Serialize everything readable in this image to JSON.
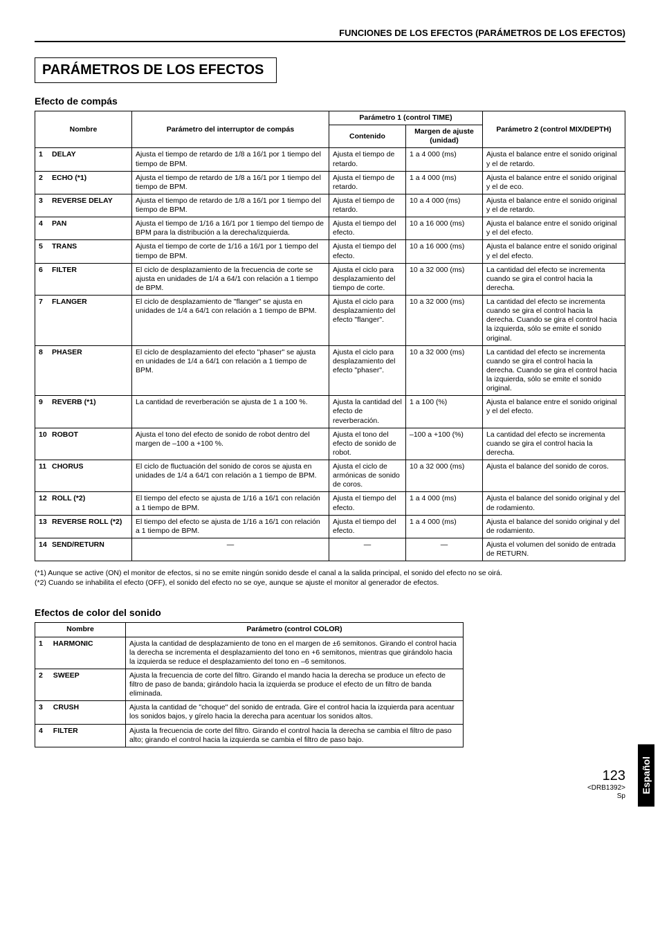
{
  "header": "FUNCIONES DE LOS EFECTOS (PARÁMETROS DE LOS EFECTOS)",
  "mainTitle": "PARÁMETROS DE LOS EFECTOS",
  "beat": {
    "title": "Efecto de compás",
    "columns": {
      "name": "Nombre",
      "switch": "Parámetro del interruptor de compás",
      "p1group": "Parámetro 1 (control TIME)",
      "content": "Contenido",
      "range": "Margen de ajuste (unidad)",
      "p2": "Parámetro 2 (control MIX/DEPTH)"
    },
    "rows": [
      {
        "n": "1",
        "name": "DELAY",
        "switch": "Ajusta el tiempo de retardo de 1/8 a 16/1 por 1 tiempo del tiempo de BPM.",
        "content": "Ajusta el tiempo de retardo.",
        "range": "1 a 4 000 (ms)",
        "p2": "Ajusta el balance entre el sonido original y el de retardo."
      },
      {
        "n": "2",
        "name": "ECHO (*1)",
        "switch": "Ajusta el tiempo de retardo de 1/8 a 16/1 por 1 tiempo del tiempo de BPM.",
        "content": "Ajusta el tiempo de retardo.",
        "range": "1 a 4 000 (ms)",
        "p2": "Ajusta el balance entre el sonido original y el de eco."
      },
      {
        "n": "3",
        "name": "REVERSE DELAY",
        "switch": "Ajusta el tiempo de retardo de 1/8 a 16/1 por 1 tiempo del tiempo de BPM.",
        "content": "Ajusta el tiempo de retardo.",
        "range": "10 a 4 000 (ms)",
        "p2": "Ajusta el balance entre el sonido original y el de retardo."
      },
      {
        "n": "4",
        "name": "PAN",
        "switch": "Ajusta el tiempo de 1/16 a 16/1 por 1 tiempo del tiempo de BPM para la distribución a la derecha/izquierda.",
        "content": "Ajusta el tiempo del efecto.",
        "range": "10 a 16 000 (ms)",
        "p2": "Ajusta el balance entre el sonido original y el del efecto."
      },
      {
        "n": "5",
        "name": "TRANS",
        "switch": "Ajusta el tiempo de corte de 1/16 a 16/1 por 1 tiempo del tiempo de BPM.",
        "content": "Ajusta el tiempo del efecto.",
        "range": "10 a 16 000 (ms)",
        "p2": "Ajusta el balance entre el sonido original y el del efecto."
      },
      {
        "n": "6",
        "name": "FILTER",
        "switch": "El ciclo de desplazamiento de la frecuencia de corte se ajusta en unidades de 1/4 a 64/1 con relación a 1 tiempo de BPM.",
        "content": "Ajusta el ciclo para desplazamiento del tiempo de corte.",
        "range": "10 a 32 000 (ms)",
        "p2": "La cantidad del efecto se incrementa cuando se gira el control hacia la derecha."
      },
      {
        "n": "7",
        "name": "FLANGER",
        "switch": "El ciclo de desplazamiento de \"flanger\" se ajusta en unidades de 1/4 a 64/1 con relación a 1 tiempo de BPM.",
        "content": "Ajusta el ciclo para desplazamiento del efecto \"flanger\".",
        "range": "10 a 32 000 (ms)",
        "p2": "La cantidad del efecto se incrementa cuando se gira el control hacia la derecha. Cuando se gira el control hacia la izquierda, sólo se emite el sonido original."
      },
      {
        "n": "8",
        "name": "PHASER",
        "switch": "El ciclo de desplazamiento del efecto \"phaser\" se ajusta en unidades de 1/4 a 64/1 con relación a 1 tiempo de BPM.",
        "content": "Ajusta el ciclo para desplazamiento del efecto \"phaser\".",
        "range": "10 a 32 000 (ms)",
        "p2": "La cantidad del efecto se incrementa cuando se gira el control hacia la derecha. Cuando se gira el control hacia la izquierda, sólo se emite el sonido original."
      },
      {
        "n": "9",
        "name": "REVERB (*1)",
        "switch": "La cantidad de reverberación se ajusta de 1 a 100 %.",
        "content": "Ajusta la cantidad del efecto de reverberación.",
        "range": "1 a 100 (%)",
        "p2": "Ajusta el balance entre el sonido original y el del efecto."
      },
      {
        "n": "10",
        "name": "ROBOT",
        "switch": "Ajusta el tono del efecto de sonido de robot dentro del margen de –100 a +100 %.",
        "content": "Ajusta el tono del efecto de sonido de robot.",
        "range": "–100 a +100 (%)",
        "p2": "La cantidad del efecto se incrementa cuando se gira el control hacia la derecha."
      },
      {
        "n": "11",
        "name": "CHORUS",
        "switch": "El ciclo de fluctuación del sonido de coros se ajusta en unidades de 1/4 a 64/1 con relación a 1 tiempo de BPM.",
        "content": "Ajusta el ciclo de armónicas de sonido de coros.",
        "range": "10 a 32 000 (ms)",
        "p2": "Ajusta el balance del sonido de coros."
      },
      {
        "n": "12",
        "name": "ROLL (*2)",
        "switch": "El tiempo del efecto se ajusta de 1/16 a 16/1 con relación a 1 tiempo de BPM.",
        "content": "Ajusta el tiempo del efecto.",
        "range": "1 a 4 000 (ms)",
        "p2": "Ajusta el balance del sonido original y del de rodamiento."
      },
      {
        "n": "13",
        "name": "REVERSE ROLL (*2)",
        "switch": "El tiempo del efecto se ajusta de 1/16 a 16/1 con relación a 1 tiempo de BPM.",
        "content": "Ajusta el tiempo del efecto.",
        "range": "1 a 4 000 (ms)",
        "p2": "Ajusta el balance del sonido original y del de rodamiento."
      },
      {
        "n": "14",
        "name": "SEND/RETURN",
        "switch": "—",
        "content": "—",
        "range": "—",
        "p2": "Ajusta el volumen del sonido de entrada de RETURN."
      }
    ],
    "notes": [
      "(*1) Aunque se active (ON) el monitor de efectos, si no se emite ningún sonido desde el canal a la salida principal, el sonido del efecto no se oirá.",
      "(*2) Cuando se inhabilita el efecto (OFF), el sonido del efecto no se oye, aunque se ajuste el monitor al generador de efectos."
    ]
  },
  "color": {
    "title": "Efectos de color del sonido",
    "columns": {
      "name": "Nombre",
      "param": "Parámetro (control COLOR)"
    },
    "rows": [
      {
        "n": "1",
        "name": "HARMONIC",
        "param": "Ajusta la cantidad de desplazamiento de tono en el margen de ±6 semitonos. Girando el control hacia la derecha se incrementa el desplazamiento del tono en +6 semitonos, mientras que girándolo hacia la izquierda se reduce el desplazamiento del tono en –6 semitonos."
      },
      {
        "n": "2",
        "name": "SWEEP",
        "param": "Ajusta la frecuencia de corte del filtro. Girando el mando hacia la derecha se produce un efecto de filtro de paso de banda; girándolo hacia la izquierda se produce el efecto de un filtro de banda eliminada."
      },
      {
        "n": "3",
        "name": "CRUSH",
        "param": "Ajusta la cantidad de \"choque\" del sonido de entrada. Gire el control hacia la izquierda para acentuar los sonidos bajos, y gírelo hacia la derecha para acentuar los sonidos altos."
      },
      {
        "n": "4",
        "name": "FILTER",
        "param": "Ajusta la frecuencia de corte del filtro. Girando el control hacia la derecha se cambia el filtro de paso alto; girando el control hacia la izquierda se cambia el filtro de paso bajo."
      }
    ]
  },
  "sideTab": "Español",
  "pageNumber": "123",
  "docCode": "<DRB1392>",
  "lang": "Sp"
}
